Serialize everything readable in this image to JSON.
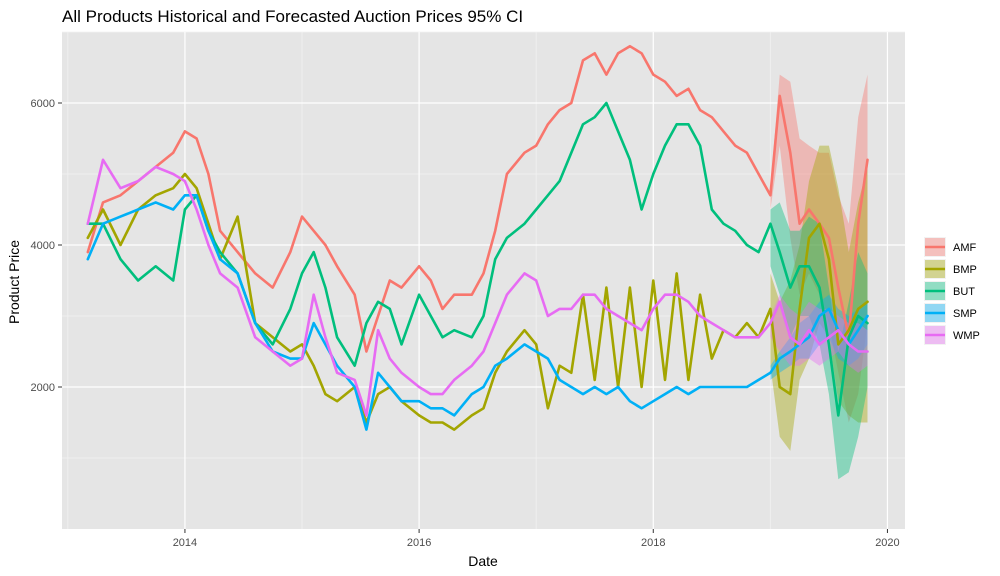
{
  "chart_data": {
    "type": "line",
    "title": "All Products Historical and Forecasted Auction Prices 95% CI",
    "xlabel": "Date",
    "ylabel": "Product Price",
    "xlim": [
      2012.95,
      2020.15
    ],
    "ylim": [
      0,
      7000
    ],
    "x_ticks": [
      2014,
      2016,
      2018,
      2020
    ],
    "x_tick_labels": [
      "2014",
      "2016",
      "2018",
      "2020"
    ],
    "y_ticks": [
      2000,
      4000,
      6000
    ],
    "y_tick_labels": [
      "2000",
      "4000",
      "6000"
    ],
    "grid": true,
    "legend_position": "right",
    "forecast_start": 2019.0,
    "series": [
      {
        "name": "AMF",
        "color": "#F8766D",
        "x": [
          2013.17,
          2013.3,
          2013.45,
          2013.6,
          2013.75,
          2013.9,
          2014.0,
          2014.1,
          2014.2,
          2014.3,
          2014.45,
          2014.6,
          2014.75,
          2014.9,
          2015.0,
          2015.1,
          2015.2,
          2015.3,
          2015.45,
          2015.55,
          2015.65,
          2015.75,
          2015.85,
          2016.0,
          2016.1,
          2016.2,
          2016.3,
          2016.45,
          2016.55,
          2016.65,
          2016.75,
          2016.9,
          2017.0,
          2017.1,
          2017.2,
          2017.3,
          2017.4,
          2017.5,
          2017.6,
          2017.7,
          2017.8,
          2017.9,
          2018.0,
          2018.1,
          2018.2,
          2018.3,
          2018.4,
          2018.5,
          2018.6,
          2018.7,
          2018.8,
          2018.9,
          2019.0,
          2019.08,
          2019.17,
          2019.25,
          2019.33,
          2019.42,
          2019.5,
          2019.58,
          2019.67,
          2019.75,
          2019.83
        ],
        "values": [
          3900,
          4600,
          4700,
          4900,
          5100,
          5300,
          5600,
          5500,
          5000,
          4200,
          3900,
          3600,
          3400,
          3900,
          4400,
          4200,
          4000,
          3700,
          3300,
          2500,
          3000,
          3500,
          3400,
          3700,
          3500,
          3100,
          3300,
          3300,
          3600,
          4200,
          5000,
          5300,
          5400,
          5700,
          5900,
          6000,
          6600,
          6700,
          6400,
          6700,
          6800,
          6700,
          6400,
          6300,
          6100,
          6200,
          5900,
          5800,
          5600,
          5400,
          5300,
          5000,
          4700,
          6100,
          5300,
          4300,
          4500,
          4300,
          4100,
          3400,
          2700,
          4300,
          5200
        ],
        "ci_x": [
          2019.0,
          2019.08,
          2019.17,
          2019.25,
          2019.33,
          2019.42,
          2019.5,
          2019.58,
          2019.67,
          2019.75,
          2019.83
        ],
        "ci_lower": [
          4500,
          5400,
          4100,
          3300,
          3600,
          3300,
          2900,
          2200,
          1500,
          1900,
          2900
        ],
        "ci_upper": [
          4800,
          6400,
          6300,
          5500,
          5400,
          5300,
          5300,
          4700,
          4300,
          5800,
          6400
        ]
      },
      {
        "name": "BMP",
        "color": "#A3A500",
        "x": [
          2013.17,
          2013.3,
          2013.45,
          2013.6,
          2013.75,
          2013.9,
          2014.0,
          2014.1,
          2014.2,
          2014.3,
          2014.45,
          2014.6,
          2014.75,
          2014.9,
          2015.0,
          2015.1,
          2015.2,
          2015.3,
          2015.45,
          2015.55,
          2015.65,
          2015.75,
          2015.85,
          2016.0,
          2016.1,
          2016.2,
          2016.3,
          2016.45,
          2016.55,
          2016.65,
          2016.75,
          2016.9,
          2017.0,
          2017.1,
          2017.2,
          2017.3,
          2017.4,
          2017.5,
          2017.6,
          2017.7,
          2017.8,
          2017.9,
          2018.0,
          2018.1,
          2018.2,
          2018.3,
          2018.4,
          2018.5,
          2018.6,
          2018.7,
          2018.8,
          2018.9,
          2019.0,
          2019.08,
          2019.17,
          2019.25,
          2019.33,
          2019.42,
          2019.5,
          2019.58,
          2019.67,
          2019.75,
          2019.83
        ],
        "values": [
          4100,
          4500,
          4000,
          4500,
          4700,
          4800,
          5000,
          4800,
          4300,
          3800,
          4400,
          2900,
          2700,
          2500,
          2600,
          2300,
          1900,
          1800,
          2000,
          1500,
          1900,
          2000,
          1800,
          1600,
          1500,
          1500,
          1400,
          1600,
          1700,
          2200,
          2500,
          2800,
          2600,
          1700,
          2300,
          2200,
          3300,
          2100,
          3400,
          2000,
          3400,
          2000,
          3500,
          2100,
          3600,
          2100,
          3300,
          2400,
          2800,
          2700,
          2900,
          2700,
          3100,
          2000,
          1900,
          3100,
          4100,
          4300,
          3800,
          2600,
          2800,
          3100,
          3200
        ],
        "ci_x": [
          2019.0,
          2019.08,
          2019.17,
          2019.25,
          2019.33,
          2019.42,
          2019.5,
          2019.58,
          2019.67,
          2019.75,
          2019.83
        ],
        "ci_lower": [
          2300,
          1300,
          1100,
          2100,
          2400,
          2900,
          2700,
          1800,
          1600,
          1500,
          1500
        ],
        "ci_upper": [
          3600,
          3200,
          3500,
          4000,
          4900,
          5400,
          5400,
          4800,
          3900,
          4600,
          5100
        ]
      },
      {
        "name": "BUT",
        "color": "#00BF7D",
        "x": [
          2013.17,
          2013.3,
          2013.45,
          2013.6,
          2013.75,
          2013.9,
          2014.0,
          2014.1,
          2014.2,
          2014.3,
          2014.45,
          2014.6,
          2014.75,
          2014.9,
          2015.0,
          2015.1,
          2015.2,
          2015.3,
          2015.45,
          2015.55,
          2015.65,
          2015.75,
          2015.85,
          2016.0,
          2016.1,
          2016.2,
          2016.3,
          2016.45,
          2016.55,
          2016.65,
          2016.75,
          2016.9,
          2017.0,
          2017.1,
          2017.2,
          2017.3,
          2017.4,
          2017.5,
          2017.6,
          2017.7,
          2017.8,
          2017.9,
          2018.0,
          2018.1,
          2018.2,
          2018.3,
          2018.4,
          2018.5,
          2018.6,
          2018.7,
          2018.8,
          2018.9,
          2019.0,
          2019.08,
          2019.17,
          2019.25,
          2019.33,
          2019.42,
          2019.5,
          2019.58,
          2019.67,
          2019.75,
          2019.83
        ],
        "values": [
          4300,
          4300,
          3800,
          3500,
          3700,
          3500,
          4500,
          4700,
          4200,
          3900,
          3600,
          2900,
          2600,
          3100,
          3600,
          3900,
          3400,
          2700,
          2300,
          2900,
          3200,
          3100,
          2600,
          3300,
          3000,
          2700,
          2800,
          2700,
          3000,
          3800,
          4100,
          4300,
          4500,
          4700,
          4900,
          5300,
          5700,
          5800,
          6000,
          5600,
          5200,
          4500,
          5000,
          5400,
          5700,
          5700,
          5400,
          4500,
          4300,
          4200,
          4000,
          3900,
          4300,
          3900,
          3400,
          3700,
          3700,
          3400,
          2600,
          1600,
          2700,
          3000,
          2900
        ],
        "ci_x": [
          2019.0,
          2019.08,
          2019.17,
          2019.25,
          2019.33,
          2019.42,
          2019.5,
          2019.58,
          2019.67,
          2019.75,
          2019.83
        ],
        "ci_lower": [
          3700,
          3300,
          2700,
          3000,
          3000,
          2600,
          1900,
          700,
          800,
          1300,
          2000
        ],
        "ci_upper": [
          4500,
          4600,
          4200,
          4200,
          4400,
          4300,
          3400,
          2500,
          3200,
          3900,
          3600
        ]
      },
      {
        "name": "SMP",
        "color": "#00B0F6",
        "x": [
          2013.17,
          2013.3,
          2013.45,
          2013.6,
          2013.75,
          2013.9,
          2014.0,
          2014.1,
          2014.2,
          2014.3,
          2014.45,
          2014.6,
          2014.75,
          2014.9,
          2015.0,
          2015.1,
          2015.2,
          2015.3,
          2015.45,
          2015.55,
          2015.65,
          2015.75,
          2015.85,
          2016.0,
          2016.1,
          2016.2,
          2016.3,
          2016.45,
          2016.55,
          2016.65,
          2016.75,
          2016.9,
          2017.0,
          2017.1,
          2017.2,
          2017.3,
          2017.4,
          2017.5,
          2017.6,
          2017.7,
          2017.8,
          2017.9,
          2018.0,
          2018.1,
          2018.2,
          2018.3,
          2018.4,
          2018.5,
          2018.6,
          2018.7,
          2018.8,
          2018.9,
          2019.0,
          2019.08,
          2019.17,
          2019.25,
          2019.33,
          2019.42,
          2019.5,
          2019.58,
          2019.67,
          2019.75,
          2019.83
        ],
        "values": [
          3800,
          4300,
          4400,
          4500,
          4600,
          4500,
          4700,
          4700,
          4200,
          3800,
          3600,
          2900,
          2500,
          2400,
          2400,
          2900,
          2600,
          2300,
          2000,
          1400,
          2200,
          2000,
          1800,
          1800,
          1700,
          1700,
          1600,
          1900,
          2000,
          2300,
          2400,
          2600,
          2500,
          2400,
          2100,
          2000,
          1900,
          2000,
          1900,
          2000,
          1800,
          1700,
          1800,
          1900,
          2000,
          1900,
          2000,
          2000,
          2000,
          2000,
          2000,
          2100,
          2200,
          2400,
          2500,
          2600,
          2700,
          3000,
          3100,
          2800,
          2600,
          2800,
          3000
        ],
        "ci_x": [
          2019.0,
          2019.08,
          2019.17,
          2019.25,
          2019.33,
          2019.42,
          2019.5,
          2019.58,
          2019.67,
          2019.75,
          2019.83
        ],
        "ci_lower": [
          2100,
          2200,
          2300,
          2400,
          2400,
          2600,
          2700,
          2400,
          2300,
          2400,
          2600
        ],
        "ci_upper": [
          2300,
          2500,
          2700,
          2900,
          3000,
          3200,
          3300,
          3100,
          3000,
          3100,
          3200
        ]
      },
      {
        "name": "WMP",
        "color": "#E76BF3",
        "x": [
          2013.17,
          2013.3,
          2013.45,
          2013.6,
          2013.75,
          2013.9,
          2014.0,
          2014.1,
          2014.2,
          2014.3,
          2014.45,
          2014.6,
          2014.75,
          2014.9,
          2015.0,
          2015.1,
          2015.2,
          2015.3,
          2015.45,
          2015.55,
          2015.65,
          2015.75,
          2015.85,
          2016.0,
          2016.1,
          2016.2,
          2016.3,
          2016.45,
          2016.55,
          2016.65,
          2016.75,
          2016.9,
          2017.0,
          2017.1,
          2017.2,
          2017.3,
          2017.4,
          2017.5,
          2017.6,
          2017.7,
          2017.8,
          2017.9,
          2018.0,
          2018.1,
          2018.2,
          2018.3,
          2018.4,
          2018.5,
          2018.6,
          2018.7,
          2018.8,
          2018.9,
          2019.0,
          2019.08,
          2019.17,
          2019.25,
          2019.33,
          2019.42,
          2019.5,
          2019.58,
          2019.67,
          2019.75,
          2019.83
        ],
        "values": [
          4300,
          5200,
          4800,
          4900,
          5100,
          5000,
          4900,
          4500,
          4000,
          3600,
          3400,
          2700,
          2500,
          2300,
          2400,
          3300,
          2700,
          2200,
          2100,
          1600,
          2800,
          2400,
          2200,
          2000,
          1900,
          1900,
          2100,
          2300,
          2500,
          2900,
          3300,
          3600,
          3500,
          3000,
          3100,
          3100,
          3300,
          3300,
          3100,
          3000,
          2900,
          2800,
          3100,
          3300,
          3300,
          3200,
          3000,
          2900,
          2800,
          2700,
          2700,
          2700,
          2900,
          3200,
          2700,
          2600,
          2800,
          2600,
          2700,
          2800,
          2600,
          2500,
          2500
        ],
        "ci_x": [
          2019.0,
          2019.08,
          2019.17,
          2019.25,
          2019.33,
          2019.42,
          2019.5,
          2019.58,
          2019.67,
          2019.75,
          2019.83
        ],
        "ci_lower": [
          2700,
          2500,
          2300,
          2300,
          2400,
          2300,
          2400,
          2500,
          2300,
          2200,
          2300
        ],
        "ci_upper": [
          3000,
          3300,
          3100,
          3000,
          3200,
          3100,
          3100,
          3000,
          2900,
          2900,
          2800
        ]
      }
    ]
  }
}
